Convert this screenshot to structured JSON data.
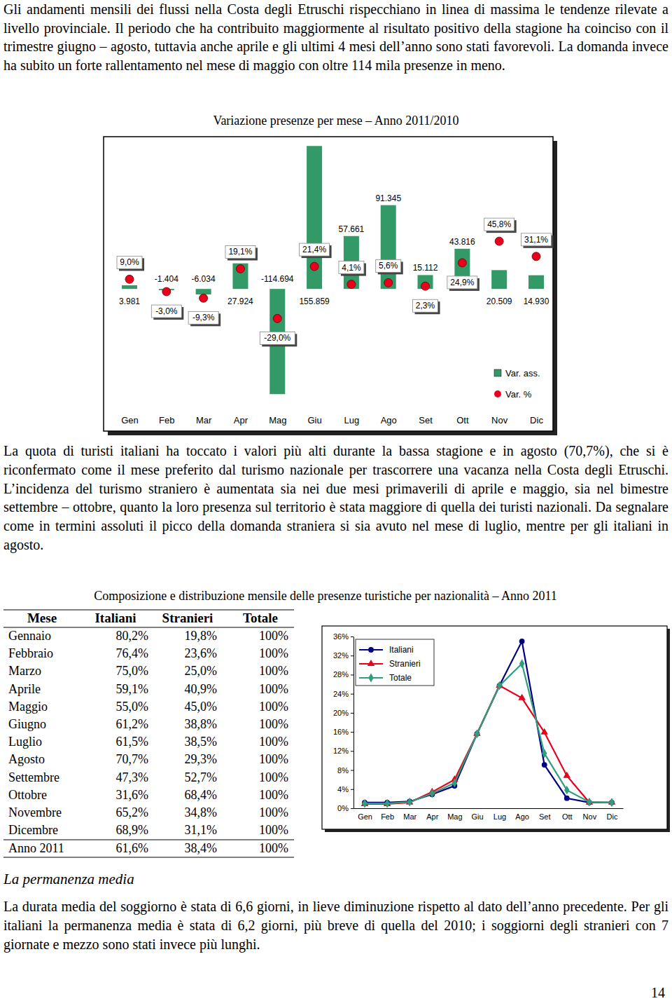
{
  "text": {
    "intro": "Gli andamenti mensili dei flussi nella Costa degli Etruschi rispecchiano in linea di massima le tendenze rilevate a livello provinciale. Il periodo che ha contribuito maggiormente al risultato positivo della stagione ha coinciso con il trimestre giugno – agosto, tuttavia anche aprile e gli ultimi 4 mesi dell’anno sono stati favorevoli. La domanda invece ha subito un forte rallentamento nel mese di maggio con oltre 114 mila presenze in meno.",
    "after_chart": "La quota di turisti italiani ha toccato i valori più alti durante la bassa stagione e in agosto (70,7%), che si è riconfermato come il mese preferito dal turismo nazionale per trascorrere una vacanza nella Costa degli Etruschi. L’incidenza del turismo straniero è aumentata sia nei due mesi primaverili di aprile e maggio, sia nel bimestre settembre – ottobre, quanto la loro presenza sul territorio è stata maggiore di quella dei turisti nazionali. Da segnalare come in termini assoluti il picco della domanda straniera si sia avuto nel mese di luglio, mentre per gli italiani in agosto.",
    "heading": "La permanenza media",
    "closing": "La durata media del soggiorno è stata di 6,6 giorni, in lieve diminuzione rispetto al dato dell’anno precedente. Per gli italiani la permanenza media è stata di 6,2 giorni, più breve di quella del 2010; i soggiorni degli stranieri con 7 giornate e mezzo sono stati invece più lunghi.",
    "page_number": "14"
  },
  "chart_data": [
    {
      "type": "bar",
      "title": "Variazione presenze per mese – Anno 2011/2010",
      "categories": [
        "Gen",
        "Feb",
        "Mar",
        "Apr",
        "Mag",
        "Giu",
        "Lug",
        "Ago",
        "Set",
        "Ott",
        "Nov",
        "Dic"
      ],
      "series": [
        {
          "name": "Var. ass.",
          "type": "bar",
          "color": "#339966",
          "values": [
            3981,
            -1404,
            -6034,
            27924,
            -114694,
            155859,
            57661,
            91345,
            15112,
            43816,
            20509,
            14930
          ],
          "value_labels": [
            "3.981",
            "-1.404",
            "-6.034",
            "27.924",
            "-114.694",
            "155.859",
            "57.661",
            "91.345",
            "15.112",
            "43.816",
            "20.509",
            "14.930"
          ]
        },
        {
          "name": "Var. %",
          "type": "scatter",
          "axis": "y2",
          "color": "#e8001c",
          "marker": "circle",
          "values": [
            9.0,
            -3.0,
            -9.3,
            19.1,
            -29.0,
            21.4,
            4.1,
            5.6,
            2.3,
            24.9,
            45.8,
            31.1
          ],
          "value_labels": [
            "9,0%",
            "-3,0%",
            "-9,3%",
            "19,1%",
            "-29,0%",
            "21,4%",
            "4,1%",
            "5,6%",
            "2,3%",
            "24,9%",
            "45,8%",
            "31,1%"
          ]
        }
      ],
      "ylim": [
        -155000,
        166000
      ],
      "y2lim": [
        -138,
        147
      ],
      "tick_labels": "x",
      "legend": "bottom right",
      "data_labels": true
    },
    {
      "type": "line",
      "categories": [
        "Gen",
        "Feb",
        "Mar",
        "Apr",
        "Mag",
        "Giu",
        "Lug",
        "Ago",
        "Set",
        "Ott",
        "Nov",
        "Dic"
      ],
      "series": [
        {
          "name": "Italiani",
          "color": "#000080",
          "marker": "circle",
          "values": [
            1.2,
            1.2,
            1.4,
            2.9,
            4.7,
            15.6,
            25.7,
            35.0,
            9.1,
            2.1,
            1.2,
            1.2
          ]
        },
        {
          "name": "Stranieri",
          "color": "#e8001c",
          "marker": "triangle",
          "values": [
            0.9,
            0.9,
            1.2,
            3.4,
            6.0,
            15.6,
            25.7,
            23.1,
            15.9,
            6.8,
            1.2,
            1.2
          ]
        },
        {
          "name": "Totale",
          "color": "#2e9e7e",
          "marker": "diamond",
          "values": [
            1.0,
            1.0,
            1.3,
            3.1,
            5.3,
            15.6,
            25.7,
            30.3,
            11.5,
            3.8,
            1.3,
            1.2
          ]
        }
      ],
      "ylim": [
        0,
        36
      ],
      "yticks": [
        {
          "value": 0,
          "label": "0%"
        },
        {
          "value": 4,
          "label": "4%"
        },
        {
          "value": 8,
          "label": "8%"
        },
        {
          "value": 12,
          "label": "12%"
        },
        {
          "value": 16,
          "label": "16%"
        },
        {
          "value": 20,
          "label": "20%"
        },
        {
          "value": 24,
          "label": "24%"
        },
        {
          "value": 28,
          "label": "28%"
        },
        {
          "value": 32,
          "label": "32%"
        },
        {
          "value": 36,
          "label": "36%"
        }
      ],
      "legend": "top left"
    }
  ],
  "table": {
    "title": "Composizione e distribuzione mensile delle presenze turistiche per nazionalità – Anno 2011",
    "columns": [
      "Mese",
      "Italiani",
      "Stranieri",
      "Totale"
    ],
    "rows": [
      [
        "Gennaio",
        "80,2%",
        "19,8%",
        "100%"
      ],
      [
        "Febbraio",
        "76,4%",
        "23,6%",
        "100%"
      ],
      [
        "Marzo",
        "75,0%",
        "25,0%",
        "100%"
      ],
      [
        "Aprile",
        "59,1%",
        "40,9%",
        "100%"
      ],
      [
        "Maggio",
        "55,0%",
        "45,0%",
        "100%"
      ],
      [
        "Giugno",
        "61,2%",
        "38,8%",
        "100%"
      ],
      [
        "Luglio",
        "61,5%",
        "38,5%",
        "100%"
      ],
      [
        "Agosto",
        "70,7%",
        "29,3%",
        "100%"
      ],
      [
        "Settembre",
        "47,3%",
        "52,7%",
        "100%"
      ],
      [
        "Ottobre",
        "31,6%",
        "68,4%",
        "100%"
      ],
      [
        "Novembre",
        "65,2%",
        "34,8%",
        "100%"
      ],
      [
        "Dicembre",
        "68,9%",
        "31,1%",
        "100%"
      ],
      [
        "Anno 2011",
        "61,6%",
        "38,4%",
        "100%"
      ]
    ]
  }
}
